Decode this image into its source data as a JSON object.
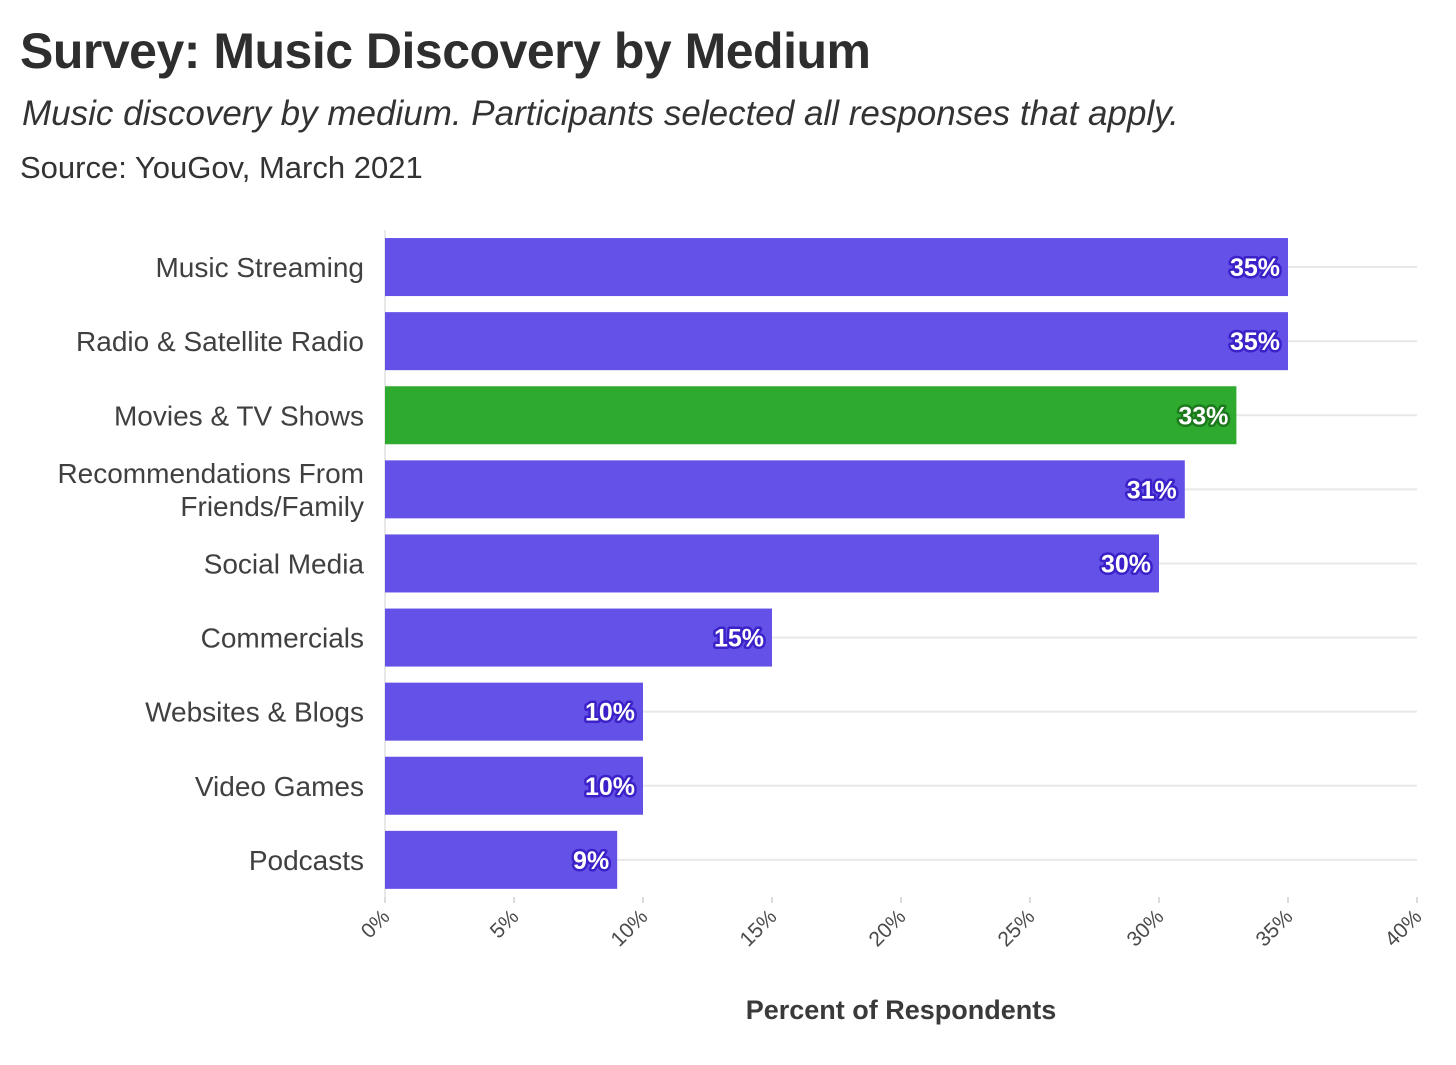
{
  "chart_data": {
    "type": "bar",
    "orientation": "horizontal",
    "title": "Survey: Music Discovery by Medium",
    "subtitle": "Music discovery by medium. Participants selected all responses that apply.",
    "source": "Source: YouGov, March 2021",
    "xlabel": "Percent of Respondents",
    "ylabel": "",
    "categories": [
      [
        "Music Streaming"
      ],
      [
        "Radio & Satellite Radio"
      ],
      [
        "Movies & TV Shows"
      ],
      [
        "Recommendations From",
        "Friends/Family"
      ],
      [
        "Social Media"
      ],
      [
        "Commercials"
      ],
      [
        "Websites & Blogs"
      ],
      [
        "Video Games"
      ],
      [
        "Podcasts"
      ]
    ],
    "values": [
      35,
      35,
      33,
      31,
      30,
      15,
      10,
      10,
      9
    ],
    "value_labels": [
      "35%",
      "35%",
      "33%",
      "31%",
      "30%",
      "15%",
      "10%",
      "10%",
      "9%"
    ],
    "highlight_index": 2,
    "xlim": [
      0,
      40
    ],
    "xticks": [
      0,
      5,
      10,
      15,
      20,
      25,
      30,
      35,
      40
    ],
    "xtick_labels": [
      "0%",
      "5%",
      "10%",
      "15%",
      "20%",
      "25%",
      "30%",
      "35%",
      "40%"
    ],
    "grid": true,
    "colors": {
      "bar": "#6351e8",
      "bar_highlight": "#2eaa2e",
      "label_outline": "#3b22c8",
      "label_outline_highlight": "#1c7a1c",
      "grid": "#e8e8e8"
    }
  }
}
